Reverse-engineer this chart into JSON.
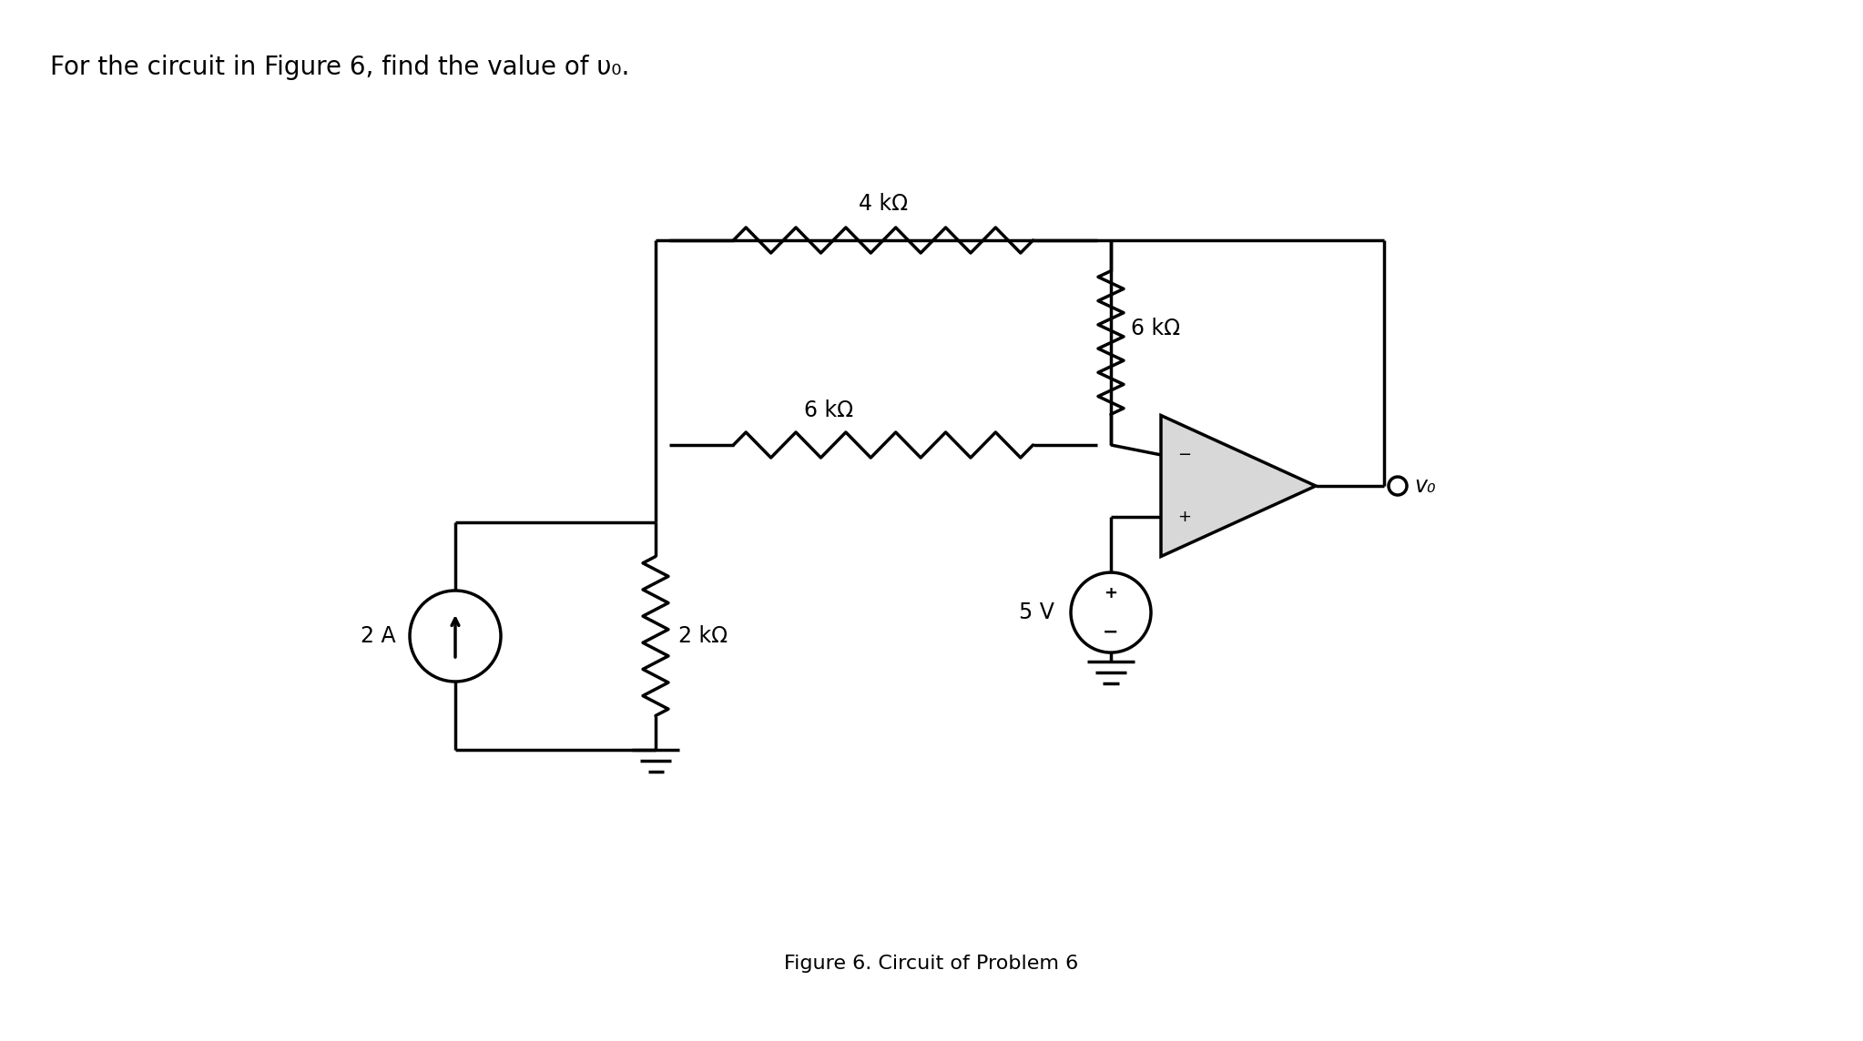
{
  "title": "For the circuit in Figure 6, find the value of υ₀.",
  "caption": "Figure 6. Circuit of Problem 6",
  "bg_color": "#ffffff",
  "line_color": "#000000",
  "line_width": 2.5,
  "label_4kohm": "4 kΩ",
  "label_6kohm_v": "6 kΩ",
  "label_6kohm_h": "6 kΩ",
  "label_2kohm": "2 kΩ",
  "label_2A": "2 A",
  "label_5V": "5 V",
  "label_vo": "v₀",
  "opamp_facecolor": "#d8d8d8",
  "title_fontsize": 20,
  "label_fontsize": 17,
  "caption_fontsize": 16
}
